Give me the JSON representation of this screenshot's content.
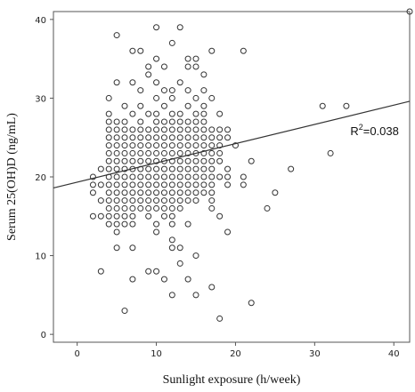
{
  "chart_data": {
    "type": "scatter",
    "xlabel": "Sunlight exposure (h/week)",
    "ylabel": "Serum 25(OH)D (ng/mL)",
    "xlim": [
      -3,
      42
    ],
    "ylim": [
      -1,
      41
    ],
    "x_ticks": [
      "0",
      "10",
      "20",
      "30",
      "40"
    ],
    "y_ticks": [
      "0",
      "10",
      "20",
      "30",
      "40"
    ],
    "grid": false,
    "annotation": {
      "text_base": "R",
      "text_sup": "2",
      "text_rest": "=0.038",
      "x": 34.5,
      "y": 25.3
    },
    "fit_line": {
      "x": [
        -3,
        42
      ],
      "y": [
        18.6,
        29.6
      ]
    },
    "marker_color": "#333333",
    "series": [
      {
        "points": [
          [
            42,
            41
          ],
          [
            5,
            38
          ],
          [
            10,
            39
          ],
          [
            13,
            39
          ],
          [
            12,
            37
          ],
          [
            7,
            36
          ],
          [
            8,
            36
          ],
          [
            10,
            35
          ],
          [
            14,
            35
          ],
          [
            15,
            35
          ],
          [
            17,
            36
          ],
          [
            21,
            36
          ],
          [
            9,
            34
          ],
          [
            11,
            34
          ],
          [
            14,
            34
          ],
          [
            15,
            34
          ],
          [
            16,
            33
          ],
          [
            9,
            33
          ],
          [
            10,
            32
          ],
          [
            13,
            32
          ],
          [
            5,
            32
          ],
          [
            7,
            32
          ],
          [
            11,
            31
          ],
          [
            12,
            31
          ],
          [
            14,
            31
          ],
          [
            16,
            31
          ],
          [
            8,
            31
          ],
          [
            4,
            30
          ],
          [
            10,
            30
          ],
          [
            12,
            30
          ],
          [
            15,
            30
          ],
          [
            17,
            30
          ],
          [
            6,
            29
          ],
          [
            8,
            29
          ],
          [
            11,
            29
          ],
          [
            14,
            29
          ],
          [
            16,
            29
          ],
          [
            31,
            29
          ],
          [
            34,
            29
          ],
          [
            4,
            28
          ],
          [
            7,
            28
          ],
          [
            9,
            28
          ],
          [
            10,
            28
          ],
          [
            12,
            28
          ],
          [
            13,
            28
          ],
          [
            15,
            28
          ],
          [
            16,
            28
          ],
          [
            18,
            28
          ],
          [
            4,
            27
          ],
          [
            5,
            27
          ],
          [
            6,
            27
          ],
          [
            8,
            27
          ],
          [
            10,
            27
          ],
          [
            11,
            27
          ],
          [
            12,
            27
          ],
          [
            13,
            27
          ],
          [
            14,
            27
          ],
          [
            15,
            27
          ],
          [
            16,
            27
          ],
          [
            4,
            26
          ],
          [
            5,
            26
          ],
          [
            6,
            26
          ],
          [
            7,
            26
          ],
          [
            8,
            26
          ],
          [
            9,
            26
          ],
          [
            10,
            26
          ],
          [
            11,
            26
          ],
          [
            12,
            26
          ],
          [
            13,
            26
          ],
          [
            14,
            26
          ],
          [
            15,
            26
          ],
          [
            16,
            26
          ],
          [
            17,
            26
          ],
          [
            18,
            26
          ],
          [
            19,
            26
          ],
          [
            4,
            25
          ],
          [
            5,
            25
          ],
          [
            6,
            25
          ],
          [
            7,
            25
          ],
          [
            8,
            25
          ],
          [
            9,
            25
          ],
          [
            10,
            25
          ],
          [
            11,
            25
          ],
          [
            12,
            25
          ],
          [
            13,
            25
          ],
          [
            14,
            25
          ],
          [
            15,
            25
          ],
          [
            16,
            25
          ],
          [
            17,
            25
          ],
          [
            18,
            25
          ],
          [
            19,
            25
          ],
          [
            4,
            24
          ],
          [
            5,
            24
          ],
          [
            6,
            24
          ],
          [
            7,
            24
          ],
          [
            8,
            24
          ],
          [
            9,
            24
          ],
          [
            10,
            24
          ],
          [
            11,
            24
          ],
          [
            12,
            24
          ],
          [
            13,
            24
          ],
          [
            14,
            24
          ],
          [
            15,
            24
          ],
          [
            16,
            24
          ],
          [
            17,
            24
          ],
          [
            18,
            24
          ],
          [
            20,
            24
          ],
          [
            4,
            23
          ],
          [
            5,
            23
          ],
          [
            6,
            23
          ],
          [
            7,
            23
          ],
          [
            8,
            23
          ],
          [
            9,
            23
          ],
          [
            10,
            23
          ],
          [
            11,
            23
          ],
          [
            12,
            23
          ],
          [
            13,
            23
          ],
          [
            14,
            23
          ],
          [
            15,
            23
          ],
          [
            16,
            23
          ],
          [
            17,
            23
          ],
          [
            18,
            23
          ],
          [
            32,
            23
          ],
          [
            4,
            22
          ],
          [
            5,
            22
          ],
          [
            6,
            22
          ],
          [
            7,
            22
          ],
          [
            8,
            22
          ],
          [
            9,
            22
          ],
          [
            10,
            22
          ],
          [
            11,
            22
          ],
          [
            12,
            22
          ],
          [
            13,
            22
          ],
          [
            14,
            22
          ],
          [
            15,
            22
          ],
          [
            16,
            22
          ],
          [
            17,
            22
          ],
          [
            18,
            22
          ],
          [
            22,
            22
          ],
          [
            3,
            21
          ],
          [
            4,
            21
          ],
          [
            5,
            21
          ],
          [
            6,
            21
          ],
          [
            7,
            21
          ],
          [
            8,
            21
          ],
          [
            9,
            21
          ],
          [
            10,
            21
          ],
          [
            11,
            21
          ],
          [
            12,
            21
          ],
          [
            13,
            21
          ],
          [
            14,
            21
          ],
          [
            15,
            21
          ],
          [
            16,
            21
          ],
          [
            17,
            21
          ],
          [
            19,
            21
          ],
          [
            27,
            21
          ],
          [
            2,
            20
          ],
          [
            4,
            20
          ],
          [
            5,
            20
          ],
          [
            6,
            20
          ],
          [
            7,
            20
          ],
          [
            8,
            20
          ],
          [
            9,
            20
          ],
          [
            10,
            20
          ],
          [
            11,
            20
          ],
          [
            12,
            20
          ],
          [
            13,
            20
          ],
          [
            14,
            20
          ],
          [
            15,
            20
          ],
          [
            16,
            20
          ],
          [
            17,
            20
          ],
          [
            18,
            20
          ],
          [
            19,
            20
          ],
          [
            21,
            20
          ],
          [
            2,
            19
          ],
          [
            3,
            19
          ],
          [
            4,
            19
          ],
          [
            5,
            19
          ],
          [
            6,
            19
          ],
          [
            7,
            19
          ],
          [
            8,
            19
          ],
          [
            9,
            19
          ],
          [
            10,
            19
          ],
          [
            11,
            19
          ],
          [
            12,
            19
          ],
          [
            13,
            19
          ],
          [
            14,
            19
          ],
          [
            15,
            19
          ],
          [
            16,
            19
          ],
          [
            17,
            19
          ],
          [
            19,
            19
          ],
          [
            21,
            19
          ],
          [
            2,
            18
          ],
          [
            4,
            18
          ],
          [
            5,
            18
          ],
          [
            6,
            18
          ],
          [
            7,
            18
          ],
          [
            8,
            18
          ],
          [
            9,
            18
          ],
          [
            10,
            18
          ],
          [
            11,
            18
          ],
          [
            12,
            18
          ],
          [
            13,
            18
          ],
          [
            14,
            18
          ],
          [
            15,
            18
          ],
          [
            16,
            18
          ],
          [
            17,
            18
          ],
          [
            25,
            18
          ],
          [
            3,
            17
          ],
          [
            4,
            17
          ],
          [
            5,
            17
          ],
          [
            6,
            17
          ],
          [
            7,
            17
          ],
          [
            8,
            17
          ],
          [
            9,
            17
          ],
          [
            10,
            17
          ],
          [
            11,
            17
          ],
          [
            12,
            17
          ],
          [
            13,
            17
          ],
          [
            14,
            17
          ],
          [
            15,
            17
          ],
          [
            17,
            17
          ],
          [
            4,
            16
          ],
          [
            5,
            16
          ],
          [
            6,
            16
          ],
          [
            7,
            16
          ],
          [
            8,
            16
          ],
          [
            9,
            16
          ],
          [
            10,
            16
          ],
          [
            11,
            16
          ],
          [
            12,
            16
          ],
          [
            13,
            16
          ],
          [
            17,
            16
          ],
          [
            24,
            16
          ],
          [
            2,
            15
          ],
          [
            3,
            15
          ],
          [
            4,
            15
          ],
          [
            5,
            15
          ],
          [
            6,
            15
          ],
          [
            7,
            15
          ],
          [
            9,
            15
          ],
          [
            11,
            15
          ],
          [
            12,
            15
          ],
          [
            18,
            15
          ],
          [
            4,
            14
          ],
          [
            5,
            14
          ],
          [
            6,
            14
          ],
          [
            7,
            14
          ],
          [
            10,
            14
          ],
          [
            12,
            14
          ],
          [
            14,
            14
          ],
          [
            19,
            13
          ],
          [
            10,
            13
          ],
          [
            5,
            13
          ],
          [
            12,
            12
          ],
          [
            5,
            11
          ],
          [
            7,
            11
          ],
          [
            12,
            11
          ],
          [
            13,
            11
          ],
          [
            15,
            10
          ],
          [
            13,
            9
          ],
          [
            3,
            8
          ],
          [
            9,
            8
          ],
          [
            10,
            8
          ],
          [
            7,
            7
          ],
          [
            11,
            7
          ],
          [
            14,
            7
          ],
          [
            17,
            6
          ],
          [
            12,
            5
          ],
          [
            15,
            5
          ],
          [
            22,
            4
          ],
          [
            6,
            3
          ],
          [
            18,
            2
          ]
        ]
      }
    ]
  }
}
